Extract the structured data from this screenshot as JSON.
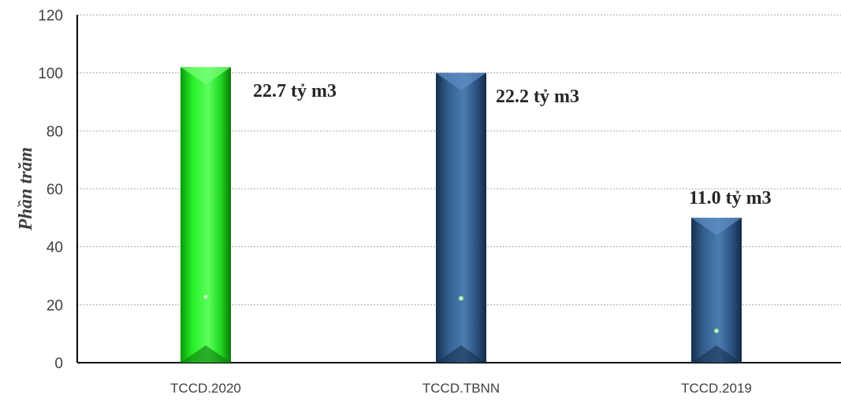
{
  "chart_data": {
    "type": "bar",
    "title": "",
    "xlabel": "",
    "ylabel": "Phần trăm",
    "ylim": [
      0,
      120
    ],
    "yticks": [
      0,
      20,
      40,
      60,
      80,
      100,
      120
    ],
    "grid": "horizontal dotted",
    "categories": [
      "TCCD.2020",
      "TCCD.TBNN",
      "TCCD.2019"
    ],
    "values": [
      102,
      100,
      50
    ],
    "data_labels": [
      "22.7 tỷ m3",
      "22.2 tỷ m3",
      "11.0 tỷ m3"
    ],
    "marker_values": [
      22.7,
      22.2,
      11.0
    ],
    "bar_colors": [
      "#1ee01e",
      "#2f5585",
      "#2f5585"
    ]
  }
}
